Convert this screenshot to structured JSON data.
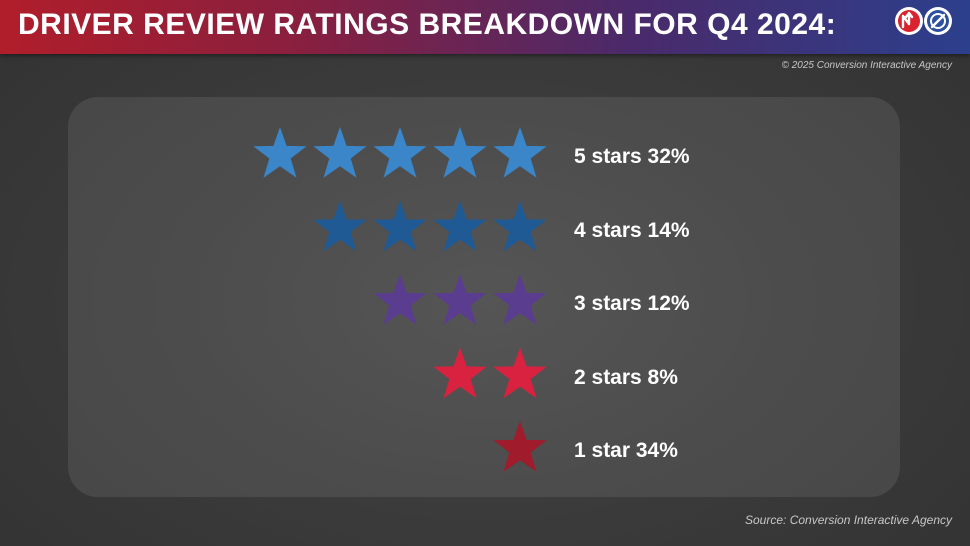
{
  "header": {
    "title": "DRIVER REVIEW RATINGS BREAKDOWN FOR Q4 2024:"
  },
  "logos": [
    {
      "icon": "arrow-logo-icon",
      "color": "#d9232e"
    },
    {
      "icon": "slash-circle-logo-icon",
      "color": "#2c4fa0"
    }
  ],
  "copyright": "© 2025 Conversion Interactive Agency",
  "source": "Source: Conversion Interactive Agency",
  "chart_data": {
    "type": "pictograph",
    "rows": [
      {
        "label": "5 stars 32%",
        "stars": 5,
        "percent": 32,
        "color": "#3a86c8"
      },
      {
        "label": "4 stars 14%",
        "stars": 4,
        "percent": 14,
        "color": "#1f5a94"
      },
      {
        "label": "3 stars 12%",
        "stars": 3,
        "percent": 12,
        "color": "#5a3d8f"
      },
      {
        "label": "2 stars 8%",
        "stars": 2,
        "percent": 8,
        "color": "#d9223f"
      },
      {
        "label": "1 star 34%",
        "stars": 1,
        "percent": 34,
        "color": "#a01c2c"
      }
    ]
  }
}
